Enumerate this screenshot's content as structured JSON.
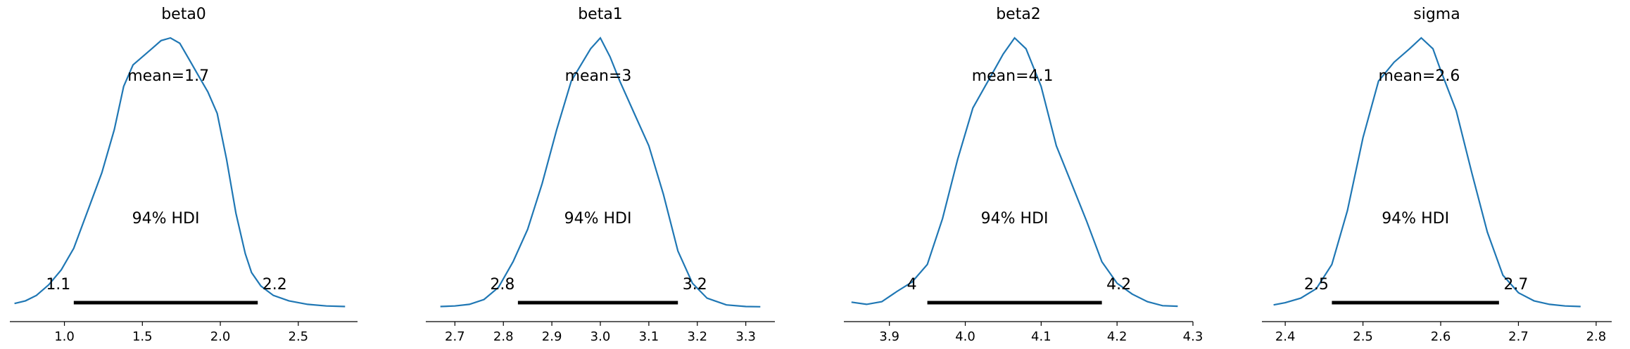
{
  "chart_data": [
    {
      "type": "area",
      "title": "beta0",
      "mean_label": "mean=1.7",
      "hdi_label": "94% HDI",
      "hdi": [
        1.06,
        2.24
      ],
      "hdi_low_label": "1.1",
      "hdi_high_label": "2.2",
      "xlim": [
        0.65,
        2.88
      ],
      "xticks": [
        1.0,
        1.5,
        2.0,
        2.5
      ],
      "xtick_labels": [
        "1.0",
        "1.5",
        "2.0",
        "2.5"
      ],
      "density": {
        "x": [
          0.68,
          0.75,
          0.82,
          0.9,
          0.98,
          1.06,
          1.15,
          1.24,
          1.32,
          1.38,
          1.44,
          1.5,
          1.56,
          1.62,
          1.68,
          1.74,
          1.8,
          1.86,
          1.92,
          1.98,
          2.04,
          2.1,
          2.16,
          2.2,
          2.26,
          2.34,
          2.44,
          2.56,
          2.68,
          2.8
        ],
        "y": [
          0.015,
          0.025,
          0.045,
          0.085,
          0.14,
          0.22,
          0.36,
          0.5,
          0.66,
          0.82,
          0.9,
          0.93,
          0.96,
          0.99,
          1.0,
          0.98,
          0.92,
          0.86,
          0.8,
          0.72,
          0.55,
          0.35,
          0.2,
          0.13,
          0.08,
          0.045,
          0.025,
          0.012,
          0.006,
          0.004
        ]
      }
    },
    {
      "type": "area",
      "title": "beta1",
      "mean_label": "mean=3",
      "hdi_label": "94% HDI",
      "hdi": [
        2.83,
        3.16
      ],
      "hdi_low_label": "2.8",
      "hdi_high_label": "3.2",
      "xlim": [
        2.64,
        3.36
      ],
      "xticks": [
        2.7,
        2.8,
        2.9,
        3.0,
        3.1,
        3.2,
        3.3
      ],
      "xtick_labels": [
        "2.7",
        "2.8",
        "2.9",
        "3.0",
        "3.1",
        "3.2",
        "3.3"
      ],
      "density": {
        "x": [
          2.67,
          2.7,
          2.73,
          2.76,
          2.79,
          2.82,
          2.85,
          2.88,
          2.91,
          2.94,
          2.96,
          2.98,
          3.0,
          3.02,
          3.04,
          3.07,
          3.1,
          3.13,
          3.16,
          3.19,
          3.22,
          3.26,
          3.3,
          3.33
        ],
        "y": [
          0.004,
          0.006,
          0.012,
          0.03,
          0.075,
          0.17,
          0.29,
          0.46,
          0.66,
          0.84,
          0.9,
          0.96,
          1.0,
          0.93,
          0.84,
          0.72,
          0.6,
          0.42,
          0.21,
          0.09,
          0.035,
          0.01,
          0.004,
          0.003
        ]
      }
    },
    {
      "type": "area",
      "title": "beta2",
      "mean_label": "mean=4.1",
      "hdi_label": "94% HDI",
      "hdi": [
        3.95,
        4.18
      ],
      "hdi_low_label": "4",
      "hdi_high_label": "4.2",
      "xlim": [
        3.84,
        4.3
      ],
      "xticks": [
        3.9,
        4.0,
        4.1,
        4.2,
        4.3
      ],
      "xtick_labels": [
        "3.9",
        "4.0",
        "4.1",
        "4.2",
        "4.3"
      ],
      "density": {
        "x": [
          3.85,
          3.87,
          3.89,
          3.91,
          3.93,
          3.95,
          3.97,
          3.99,
          4.01,
          4.03,
          4.05,
          4.065,
          4.08,
          4.1,
          4.12,
          4.14,
          4.16,
          4.18,
          4.2,
          4.22,
          4.24,
          4.26,
          4.28
        ],
        "y": [
          0.02,
          0.012,
          0.022,
          0.06,
          0.095,
          0.16,
          0.33,
          0.55,
          0.74,
          0.84,
          0.94,
          1.0,
          0.96,
          0.82,
          0.6,
          0.46,
          0.32,
          0.17,
          0.09,
          0.05,
          0.022,
          0.007,
          0.005
        ]
      }
    },
    {
      "type": "area",
      "title": "sigma",
      "mean_label": "mean=2.6",
      "hdi_label": "94% HDI",
      "hdi": [
        2.46,
        2.675
      ],
      "hdi_low_label": "2.5",
      "hdi_high_label": "2.7",
      "xlim": [
        2.37,
        2.82
      ],
      "xticks": [
        2.4,
        2.5,
        2.6,
        2.7,
        2.8
      ],
      "xtick_labels": [
        "2.4",
        "2.5",
        "2.6",
        "2.7",
        "2.8"
      ],
      "density": {
        "x": [
          2.385,
          2.4,
          2.42,
          2.44,
          2.46,
          2.48,
          2.5,
          2.52,
          2.54,
          2.56,
          2.575,
          2.59,
          2.6,
          2.62,
          2.64,
          2.66,
          2.68,
          2.7,
          2.72,
          2.74,
          2.76,
          2.78
        ],
        "y": [
          0.01,
          0.018,
          0.035,
          0.07,
          0.16,
          0.36,
          0.63,
          0.84,
          0.91,
          0.96,
          1.0,
          0.96,
          0.88,
          0.73,
          0.5,
          0.28,
          0.12,
          0.055,
          0.025,
          0.012,
          0.006,
          0.004
        ]
      }
    }
  ]
}
